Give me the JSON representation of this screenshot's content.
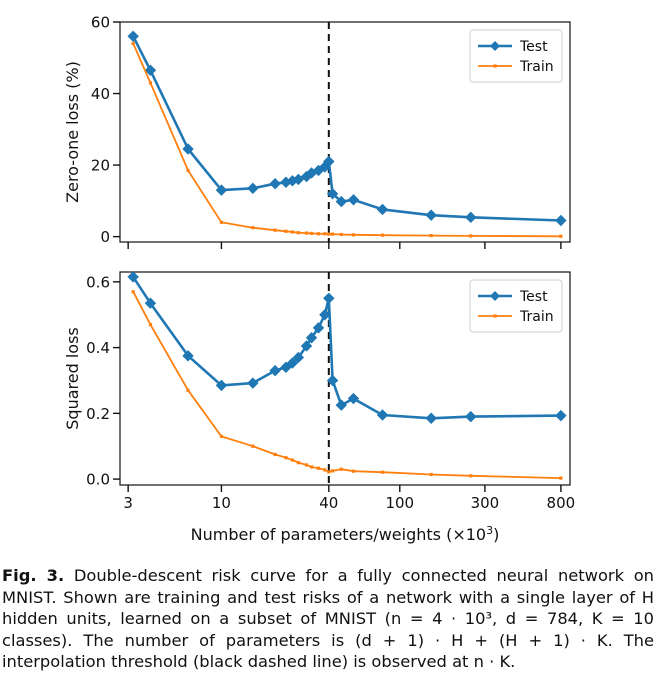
{
  "chart_data": [
    {
      "type": "line",
      "title": "",
      "xlabel": "",
      "ylabel": "Zero-one loss (%)",
      "xscale": "log",
      "xlim": [
        2.7,
        900
      ],
      "ylim": [
        -1.5,
        60
      ],
      "yticks": [
        0,
        20,
        40,
        60
      ],
      "ytick_labels": [
        "0",
        "20",
        "40",
        "60"
      ],
      "threshold": 40,
      "legend": {
        "position": "top-right",
        "entries": [
          "Test",
          "Train"
        ]
      },
      "series": [
        {
          "name": "Test",
          "color": "#1f77b4",
          "marker": "diamond",
          "x": [
            3.2,
            4.0,
            6.5,
            10,
            15,
            20,
            23,
            25,
            27,
            30,
            32,
            35,
            38,
            40,
            42,
            47,
            55,
            80,
            150,
            250,
            800
          ],
          "y": [
            56,
            46.5,
            24.5,
            13,
            13.5,
            14.8,
            15.2,
            15.6,
            16,
            16.8,
            17.8,
            18.5,
            19.5,
            21,
            12,
            9.8,
            10.3,
            7.6,
            6,
            5.4,
            4.5
          ]
        },
        {
          "name": "Train",
          "color": "#ff7f0e",
          "marker": "small",
          "x": [
            3.2,
            4.0,
            6.5,
            10,
            15,
            20,
            23,
            25,
            27,
            30,
            32,
            35,
            38,
            40,
            42,
            47,
            55,
            80,
            150,
            250,
            800
          ],
          "y": [
            54,
            43,
            18.5,
            4,
            2.5,
            1.8,
            1.5,
            1.3,
            1.1,
            1.0,
            0.9,
            0.8,
            0.8,
            0.7,
            0.7,
            0.6,
            0.5,
            0.4,
            0.3,
            0.2,
            0.1
          ]
        }
      ]
    },
    {
      "type": "line",
      "title": "",
      "xlabel": "Number of parameters/weights (×10",
      "xlabel_sup": "3",
      "xlabel_end": ")",
      "ylabel": "Squared loss",
      "xscale": "log",
      "xlim": [
        2.7,
        900
      ],
      "ylim": [
        -0.018,
        0.63
      ],
      "yticks": [
        0,
        0.2,
        0.4,
        0.6
      ],
      "ytick_labels": [
        "0.0",
        "0.2",
        "0.4",
        "0.6"
      ],
      "xticks": [
        3,
        10,
        40,
        100,
        300,
        800
      ],
      "xtick_labels": [
        "3",
        "10",
        "40",
        "100",
        "300",
        "800"
      ],
      "threshold": 40,
      "legend": {
        "position": "top-right",
        "entries": [
          "Test",
          "Train"
        ]
      },
      "series": [
        {
          "name": "Test",
          "color": "#1f77b4",
          "marker": "diamond",
          "x": [
            3.2,
            4.0,
            6.5,
            10,
            15,
            20,
            23,
            25,
            27,
            30,
            32,
            35,
            38,
            40,
            42,
            47,
            55,
            80,
            150,
            250,
            800
          ],
          "y": [
            0.615,
            0.535,
            0.375,
            0.285,
            0.292,
            0.33,
            0.34,
            0.353,
            0.37,
            0.405,
            0.43,
            0.46,
            0.5,
            0.55,
            0.3,
            0.225,
            0.245,
            0.195,
            0.185,
            0.19,
            0.193
          ]
        },
        {
          "name": "Train",
          "color": "#ff7f0e",
          "marker": "small",
          "x": [
            3.2,
            4.0,
            6.5,
            10,
            15,
            20,
            23,
            25,
            27,
            30,
            32,
            35,
            38,
            40,
            42,
            47,
            55,
            80,
            150,
            250,
            800
          ],
          "y": [
            0.57,
            0.47,
            0.27,
            0.13,
            0.1,
            0.075,
            0.065,
            0.058,
            0.05,
            0.043,
            0.037,
            0.033,
            0.028,
            0.022,
            0.025,
            0.03,
            0.024,
            0.021,
            0.014,
            0.01,
            0.003
          ]
        }
      ]
    }
  ],
  "caption": {
    "label": "Fig. 3.",
    "text": "Double-descent risk curve for a fully connected neural network on MNIST. Shown are training and test risks of a network with a single layer of H hidden units, learned on a subset of MNIST (n = 4 · 10³, d = 784, K = 10 classes). The number of parameters is (d + 1) · H + (H + 1) · K. The interpolation threshold (black dashed line) is observed at n · K."
  }
}
